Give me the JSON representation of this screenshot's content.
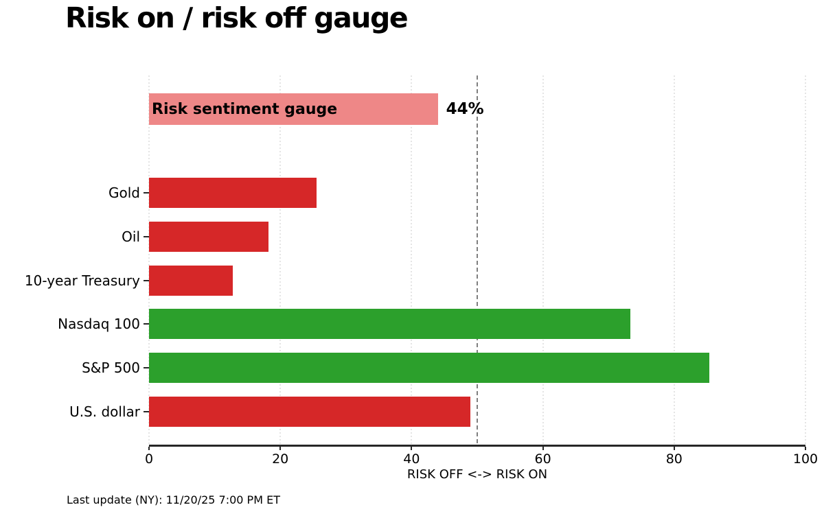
{
  "header": {
    "title": "Risk on / risk off gauge"
  },
  "footer": {
    "last_update": "Last update (NY): 11/20/25 7:00 PM ET"
  },
  "chart_data": {
    "type": "bar",
    "orientation": "horizontal",
    "title": "Risk on / risk off gauge",
    "xlabel": "RISK OFF <-> RISK ON",
    "ylabel": "",
    "xlim": [
      0,
      100
    ],
    "xticks": [
      0,
      20,
      40,
      60,
      80,
      100
    ],
    "grid": "vertical-dotted",
    "divider_x": 50,
    "gauge": {
      "label": "Risk sentiment gauge",
      "value": 44,
      "value_label": "44%",
      "color": "#ee8787"
    },
    "categories": [
      "Gold",
      "Oil",
      "10-year Treasury",
      "Nasdaq 100",
      "S&P 500",
      "U.S. dollar"
    ],
    "values": [
      25.5,
      18.2,
      12.8,
      73.3,
      85.4,
      49
    ],
    "bar_colors": [
      "#d62728",
      "#d62728",
      "#d62728",
      "#2ca02c",
      "#2ca02c",
      "#d62728"
    ],
    "legend": [],
    "colors": {
      "risk_off": "#d62728",
      "risk_on": "#2ca02c",
      "gauge": "#ee8787",
      "divider": "#7f7f7f",
      "grid": "#c9c9c9",
      "axis": "#262626"
    }
  }
}
